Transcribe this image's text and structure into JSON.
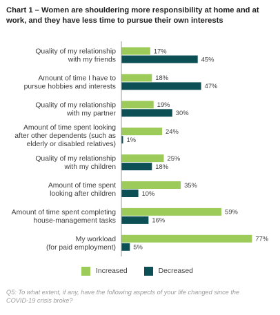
{
  "chart_data": {
    "type": "bar",
    "orientation": "horizontal",
    "title": "Chart 1 – Women are shouldering more responsibility at home and at work, and they have less time to pursue their own interests",
    "categories": [
      [
        "Quality of my relationship",
        "with my friends"
      ],
      [
        "Amount of time I have to",
        "pursue hobbies and interests"
      ],
      [
        "Quality of my relationship",
        "with my partner"
      ],
      [
        "Amount of time spent looking",
        "after other dependents (such as",
        "elderly or disabled relatives)"
      ],
      [
        "Quality of my relationship",
        "with my children"
      ],
      [
        "Amount of time spent",
        "looking after children"
      ],
      [
        "Amount of time spent completing",
        "house-management tasks"
      ],
      [
        "My workload",
        "(for paid employment)"
      ]
    ],
    "series": [
      {
        "name": "Increased",
        "color": "#9ccb59",
        "values": [
          17,
          18,
          19,
          24,
          25,
          35,
          59,
          77
        ]
      },
      {
        "name": "Decreased",
        "color": "#0c4f55",
        "values": [
          45,
          47,
          30,
          1,
          18,
          10,
          16,
          5
        ]
      }
    ],
    "value_suffix": "%",
    "legend_position": "bottom",
    "grid": false
  },
  "source_note": "Q5: To what extent, if any, have the following aspects of your life changed since the COVID-19 crisis broke?"
}
